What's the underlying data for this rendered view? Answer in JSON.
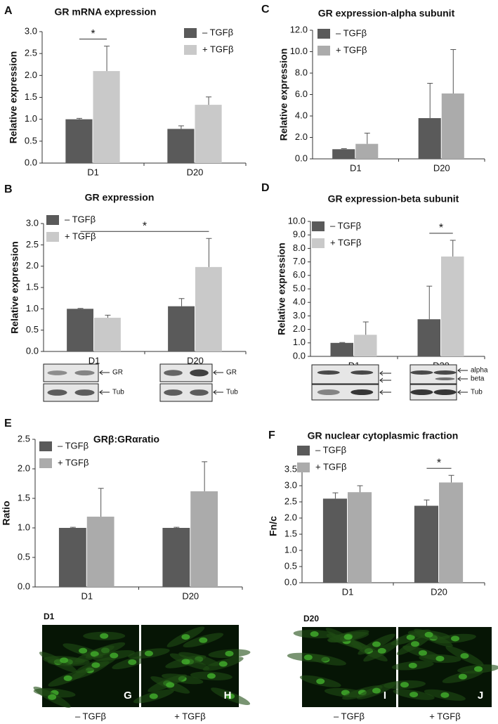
{
  "chart_data": [
    {
      "type": "bar",
      "panel": "A",
      "title": "GR mRNA expression",
      "ylabel": "Relative expression",
      "categories": [
        "D1",
        "D20"
      ],
      "series": [
        {
          "name": "– TGFβ",
          "color": "#5a5a5a",
          "values": [
            1.0,
            0.78
          ],
          "errors": [
            0.02,
            0.07
          ]
        },
        {
          "name": "+ TGFβ",
          "color": "#c9c9c9",
          "values": [
            2.1,
            1.33
          ],
          "errors": [
            0.57,
            0.18
          ]
        }
      ],
      "ylim": [
        0,
        3
      ],
      "yticks": [
        {
          "value": 0,
          "label": "0.0"
        },
        0.5,
        {
          "value": 1,
          "label": "1.0"
        },
        1.5,
        {
          "value": 2,
          "label": "2.0"
        },
        2.5,
        {
          "value": 3,
          "label": "3.0"
        }
      ],
      "annotations": [
        {
          "text": "*",
          "from": [
            "– TGFβ",
            "D1"
          ],
          "to": [
            "+ TGFβ",
            "D1"
          ]
        }
      ]
    },
    {
      "type": "bar",
      "panel": "C",
      "title": "GR expression-alpha subunit",
      "ylabel": "Relative expression",
      "categories": [
        "D1",
        "D20"
      ],
      "series": [
        {
          "name": "– TGFβ",
          "color": "#5a5a5a",
          "values": [
            0.9,
            3.8
          ],
          "errors": [
            0.05,
            3.25
          ]
        },
        {
          "name": "+ TGFβ",
          "color": "#ababab",
          "values": [
            1.4,
            6.1
          ],
          "errors": [
            1.0,
            4.1
          ]
        }
      ],
      "ylim": [
        0,
        12
      ],
      "yticks": [
        {
          "value": 0,
          "label": "0.0"
        },
        {
          "value": 2,
          "label": "2.0"
        },
        {
          "value": 4,
          "label": "4.0"
        },
        {
          "value": 6,
          "label": "6.0"
        },
        {
          "value": 8,
          "label": "8.0"
        },
        {
          "value": 10,
          "label": "10.0"
        },
        {
          "value": 12,
          "label": "12.0"
        }
      ],
      "annotations": []
    },
    {
      "type": "bar",
      "panel": "B",
      "title": "GR expression",
      "ylabel": "Relative expression",
      "categories": [
        "D1",
        "D20"
      ],
      "series": [
        {
          "name": "– TGFβ",
          "color": "#5a5a5a",
          "values": [
            1.0,
            1.06
          ],
          "errors": [
            0.01,
            0.18
          ]
        },
        {
          "name": "+ TGFβ",
          "color": "#c9c9c9",
          "values": [
            0.79,
            1.98
          ],
          "errors": [
            0.06,
            0.67
          ]
        }
      ],
      "ylim": [
        0,
        3
      ],
      "yticks": [
        {
          "value": 0,
          "label": "0.0"
        },
        0.5,
        {
          "value": 1,
          "label": "1.0"
        },
        1.5,
        {
          "value": 2,
          "label": "2.0"
        },
        2.5,
        {
          "value": 3,
          "label": "3.0"
        }
      ],
      "annotations": [
        {
          "text": "*",
          "from": [
            "– TGFβ",
            "D1"
          ],
          "to": [
            "+ TGFβ",
            "D20"
          ]
        }
      ],
      "blots": [
        [
          "GR",
          "Tub"
        ],
        [
          "GR",
          "Tub"
        ]
      ]
    },
    {
      "type": "bar",
      "panel": "D",
      "title": "GR expression-beta subunit",
      "ylabel": "Relative expression",
      "categories": [
        "D1",
        "D20"
      ],
      "series": [
        {
          "name": "– TGFβ",
          "color": "#5a5a5a",
          "values": [
            1.0,
            2.75
          ],
          "errors": [
            0.03,
            2.45
          ]
        },
        {
          "name": "+ TGFβ",
          "color": "#c9c9c9",
          "values": [
            1.6,
            7.4
          ],
          "errors": [
            0.95,
            1.2
          ]
        }
      ],
      "ylim": [
        0,
        10
      ],
      "yticks": [
        {
          "value": 0,
          "label": "0.0"
        },
        {
          "value": 1,
          "label": "1.0"
        },
        {
          "value": 2,
          "label": "2.0"
        },
        {
          "value": 3,
          "label": "3.0"
        },
        {
          "value": 4,
          "label": "4.0"
        },
        {
          "value": 5,
          "label": "5.0"
        },
        {
          "value": 6,
          "label": "6.0"
        },
        {
          "value": 7,
          "label": "7.0"
        },
        {
          "value": 8,
          "label": "8.0"
        },
        {
          "value": 9,
          "label": "9.0"
        },
        {
          "value": 10,
          "label": "10.0"
        }
      ],
      "annotations": [
        {
          "text": "*",
          "from": [
            "– TGFβ",
            "D20"
          ],
          "to": [
            "+ TGFβ",
            "D20"
          ]
        }
      ],
      "blots": [
        [
          "alpha",
          "beta",
          "Tub"
        ]
      ]
    },
    {
      "type": "bar",
      "panel": "E",
      "title": "GRβ:GRαratio",
      "ylabel": "Ratio",
      "categories": [
        "D1",
        "D20"
      ],
      "series": [
        {
          "name": "– TGFβ",
          "color": "#5a5a5a",
          "values": [
            1.0,
            1.0
          ],
          "errors": [
            0.01,
            0.01
          ]
        },
        {
          "name": "+ TGFβ",
          "color": "#ababab",
          "values": [
            1.19,
            1.62
          ],
          "errors": [
            0.48,
            0.5
          ]
        }
      ],
      "ylim": [
        0,
        2.5
      ],
      "yticks": [
        {
          "value": 0,
          "label": "0.0"
        },
        0.5,
        {
          "value": 1,
          "label": "1.0"
        },
        1.5,
        {
          "value": 2,
          "label": "2.0"
        },
        2.5
      ],
      "annotations": []
    },
    {
      "type": "bar",
      "panel": "F",
      "title": "GR nuclear cytoplasmic fraction",
      "ylabel": "Fn/c",
      "categories": [
        "D1",
        "D20"
      ],
      "series": [
        {
          "name": "– TGFβ",
          "color": "#5a5a5a",
          "values": [
            2.6,
            2.38
          ],
          "errors": [
            0.18,
            0.18
          ]
        },
        {
          "name": "+ TGFβ",
          "color": "#ababab",
          "values": [
            2.8,
            3.1
          ],
          "errors": [
            0.2,
            0.22
          ]
        }
      ],
      "ylim": [
        0,
        3.5
      ],
      "yticks": [
        {
          "value": 0,
          "label": "0.0"
        },
        0.5,
        {
          "value": 1,
          "label": "1.0"
        },
        1.5,
        {
          "value": 2,
          "label": "2.0"
        },
        2.5,
        {
          "value": 3,
          "label": "3.0"
        },
        3.5
      ],
      "annotations": [
        {
          "text": "*",
          "from": [
            "– TGFβ",
            "D20"
          ],
          "to": [
            "+ TGFβ",
            "D20"
          ]
        }
      ]
    }
  ],
  "micrographs": [
    {
      "title": "D1",
      "panels": [
        {
          "letter": "G",
          "label": "– TGFβ"
        },
        {
          "letter": "H",
          "label": "+ TGFβ"
        }
      ]
    },
    {
      "title": "D20",
      "panels": [
        {
          "letter": "I",
          "label": "– TGFβ"
        },
        {
          "letter": "J",
          "label": "+ TGFβ"
        }
      ]
    }
  ]
}
